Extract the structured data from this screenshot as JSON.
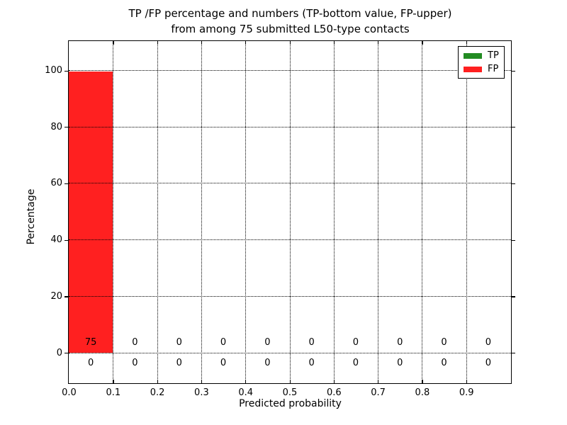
{
  "title": {
    "line1": "TP /FP percentage and numbers (TP-bottom value, FP-upper)",
    "line2": "from among 75 submitted L50-type contacts"
  },
  "axes": {
    "xlabel": "Predicted probability",
    "ylabel": "Percentage",
    "xticks": [
      "0.0",
      "0.1",
      "0.2",
      "0.3",
      "0.4",
      "0.5",
      "0.6",
      "0.7",
      "0.8",
      "0.9"
    ],
    "yticks": [
      "0",
      "20",
      "40",
      "60",
      "80",
      "100"
    ]
  },
  "legend": {
    "items": [
      {
        "label": "TP",
        "color": "#228b22"
      },
      {
        "label": "FP",
        "color": "#ff2020"
      }
    ]
  },
  "chart_data": {
    "type": "bar",
    "title": "TP /FP percentage and numbers (TP-bottom value, FP-upper) from among 75 submitted L50-type contacts",
    "xlabel": "Predicted probability",
    "ylabel": "Percentage",
    "total_submitted_contacts": 75,
    "bins": [
      "0.0-0.1",
      "0.1-0.2",
      "0.2-0.3",
      "0.3-0.4",
      "0.4-0.5",
      "0.5-0.6",
      "0.6-0.7",
      "0.7-0.8",
      "0.8-0.9",
      "0.9-1.0"
    ],
    "bin_centers": [
      0.05,
      0.15,
      0.25,
      0.35,
      0.45,
      0.55,
      0.65,
      0.75,
      0.85,
      0.95
    ],
    "series": [
      {
        "name": "TP",
        "color": "#228b22",
        "percentages": [
          0,
          0,
          0,
          0,
          0,
          0,
          0,
          0,
          0,
          0
        ],
        "counts": [
          0,
          0,
          0,
          0,
          0,
          0,
          0,
          0,
          0,
          0
        ]
      },
      {
        "name": "FP",
        "color": "#ff2020",
        "percentages": [
          100,
          0,
          0,
          0,
          0,
          0,
          0,
          0,
          0,
          0
        ],
        "counts": [
          75,
          0,
          0,
          0,
          0,
          0,
          0,
          0,
          0,
          0
        ]
      }
    ],
    "xlim": [
      0.0,
      1.0
    ],
    "ylim": [
      -10,
      110
    ],
    "grid": true,
    "grid_style": "dotted",
    "legend_position": "upper right",
    "count_rows_note": "per-bin counts printed near baseline: FP count above the 0 line, TP count below it"
  }
}
